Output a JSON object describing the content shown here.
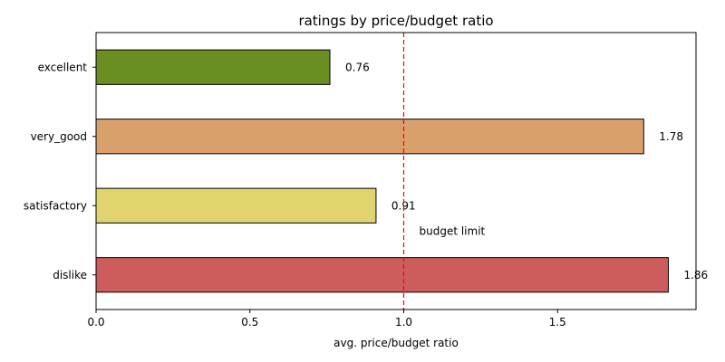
{
  "chart_data": {
    "type": "bar",
    "orientation": "horizontal",
    "title": "ratings by price/budget ratio",
    "xlabel": "avg. price/budget ratio",
    "ylabel": "",
    "categories": [
      "excellent",
      "very_good",
      "satisfactory",
      "dislike"
    ],
    "values": [
      0.76,
      1.78,
      0.91,
      1.86
    ],
    "value_labels": [
      "0.76",
      "1.78",
      "0.91",
      "1.86"
    ],
    "colors": [
      "#6b8e23",
      "#d9a06b",
      "#e0d46e",
      "#cd5c5c"
    ],
    "xlim": [
      0,
      1.95
    ],
    "xticks": [
      0.0,
      0.5,
      1.0,
      1.5
    ],
    "xtick_labels": [
      "0.0",
      "0.5",
      "1.0",
      "1.5"
    ],
    "grid": false,
    "reference_line": {
      "value": 1.0,
      "color": "#ff0000",
      "style": "dashed",
      "label": "budget limit"
    }
  }
}
